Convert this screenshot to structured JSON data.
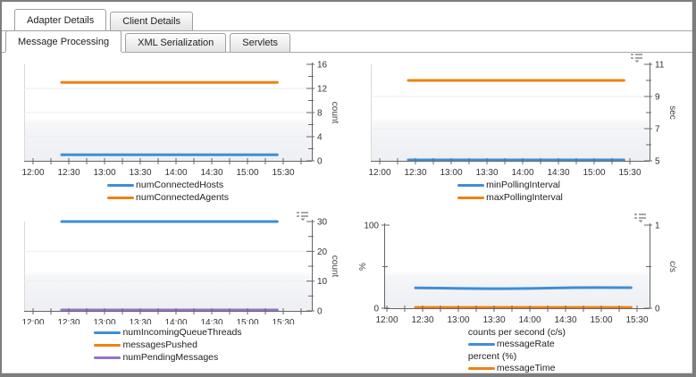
{
  "window": {
    "background": "#ffffff",
    "border_color": "#7d7d7d"
  },
  "tabs_primary": {
    "items": [
      {
        "label": "Adapter Details",
        "active": true
      },
      {
        "label": "Client Details",
        "active": false
      }
    ]
  },
  "tabs_secondary": {
    "items": [
      {
        "label": "Message Processing",
        "active": true
      },
      {
        "label": "XML Serialization",
        "active": false
      },
      {
        "label": "Servlets",
        "active": false
      }
    ]
  },
  "colors": {
    "blue": "#3e8ed8",
    "orange": "#ee8211",
    "purple": "#9473cb",
    "axis": "#666666",
    "grid": "#ebedf0",
    "band": "#edeff3",
    "icon": "#8a8a8a"
  },
  "icons": {
    "chart_menu": "options-list-with-down-caret"
  },
  "time_axis": {
    "tick_labels": [
      "12:00",
      "12:30",
      "13:00",
      "13:30",
      "14:00",
      "14:30",
      "15:00",
      "15:30"
    ],
    "minor_tick_minutes": 15,
    "data_start": "12:24",
    "data_end": "15:25"
  },
  "chart_data": [
    {
      "type": "line",
      "position": "top-left",
      "has_menu_icon": false,
      "axes": [
        {
          "side": "right",
          "title": "count",
          "min": 0,
          "max": 16,
          "labels": [
            0,
            4,
            8,
            12,
            16
          ],
          "minors": [
            2,
            6,
            10,
            14
          ]
        }
      ],
      "series": [
        {
          "name": "numConnectedHosts",
          "color": "blue",
          "axis": "right",
          "value": 1
        },
        {
          "name": "numConnectedAgents",
          "color": "orange",
          "axis": "right",
          "value": 13
        }
      ],
      "legend": [
        {
          "swatch": "blue",
          "label": "numConnectedHosts"
        },
        {
          "swatch": "orange",
          "label": "numConnectedAgents"
        }
      ]
    },
    {
      "type": "line",
      "position": "top-right",
      "has_menu_icon": true,
      "axes": [
        {
          "side": "right",
          "title": "sec",
          "min": 5,
          "max": 11,
          "labels": [
            5,
            7,
            9,
            11
          ],
          "minors": [
            6,
            8,
            10
          ]
        }
      ],
      "series": [
        {
          "name": "minPollingInterval",
          "color": "blue",
          "axis": "right",
          "value": 5
        },
        {
          "name": "maxPollingInterval",
          "color": "orange",
          "axis": "right",
          "value": 10
        }
      ],
      "legend": [
        {
          "swatch": "blue",
          "label": "minPollingInterval"
        },
        {
          "swatch": "orange",
          "label": "maxPollingInterval"
        }
      ]
    },
    {
      "type": "line",
      "position": "bottom-left",
      "has_menu_icon": true,
      "axes": [
        {
          "side": "right",
          "title": "count",
          "min": 0,
          "max": 30,
          "labels": [
            0,
            10,
            20,
            30
          ],
          "minors": [
            5,
            15,
            25
          ]
        }
      ],
      "series": [
        {
          "name": "numIncomingQueueThreads",
          "color": "blue",
          "axis": "right",
          "value": 30
        },
        {
          "name": "messagesPushed",
          "color": "orange",
          "axis": "right",
          "value": 0
        },
        {
          "name": "numPendingMessages",
          "color": "purple",
          "axis": "right",
          "value": 0
        }
      ],
      "legend": [
        {
          "swatch": "blue",
          "label": "numIncomingQueueThreads"
        },
        {
          "swatch": "orange",
          "label": "messagesPushed"
        },
        {
          "swatch": "purple",
          "label": "numPendingMessages"
        }
      ]
    },
    {
      "type": "line",
      "position": "bottom-right",
      "has_menu_icon": true,
      "axes": [
        {
          "side": "left",
          "title": "%",
          "min": 0,
          "max": 100,
          "labels": [
            0,
            100
          ],
          "minors": [
            50
          ]
        },
        {
          "side": "right",
          "title": "c/s",
          "min": 0,
          "max": 1,
          "labels": [
            0,
            1
          ],
          "minors": [
            0.5
          ]
        }
      ],
      "series": [
        {
          "name": "messageRate",
          "color": "blue",
          "axis": "right",
          "points": [
            [
              24,
              0.245
            ],
            [
              45,
              0.242
            ],
            [
              65,
              0.238
            ],
            [
              85,
              0.236
            ],
            [
              100,
              0.235
            ],
            [
              120,
              0.238
            ],
            [
              140,
              0.243
            ],
            [
              155,
              0.247
            ],
            [
              175,
              0.248
            ],
            [
              205,
              0.247
            ]
          ]
        },
        {
          "name": "messageTime",
          "color": "orange",
          "axis": "left",
          "value": 1
        }
      ],
      "legend": [
        {
          "header": "counts per second (c/s)"
        },
        {
          "swatch": "blue",
          "label": "messageRate"
        },
        {
          "header": "percent (%)"
        },
        {
          "swatch": "orange",
          "label": "messageTime"
        }
      ]
    }
  ]
}
